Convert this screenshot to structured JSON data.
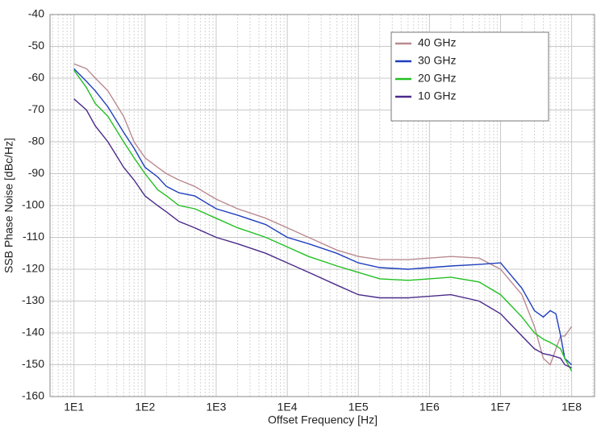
{
  "chart_data": {
    "type": "line",
    "x_label": "Offset Frequency [Hz]",
    "y_label": "SSB Phase Noise [dBc/Hz]",
    "x": [
      10,
      15,
      20,
      30,
      50,
      70,
      100,
      150,
      200,
      300,
      500,
      1000,
      2000,
      5000,
      10000,
      20000,
      50000,
      100000,
      200000,
      500000,
      1000000,
      2000000,
      5000000,
      10000000,
      20000000,
      30000000,
      40000000,
      50000000,
      60000000,
      70000000,
      80000000,
      100000000
    ],
    "series": [
      {
        "name": "40 GHz",
        "color": "#b98a90",
        "values": [
          -55.5,
          -57,
          -60,
          -64,
          -72,
          -80,
          -85,
          -88,
          -90,
          -92,
          -94,
          -98,
          -101,
          -104,
          -107,
          -110,
          -114,
          -116,
          -117,
          -117,
          -116.5,
          -116,
          -116.5,
          -120,
          -128,
          -138,
          -148,
          -150,
          -145,
          -141,
          -141,
          -138
        ]
      },
      {
        "name": "30 GHz",
        "color": "#1f3fbf",
        "values": [
          -57,
          -61,
          -64,
          -69,
          -77,
          -82,
          -88,
          -91,
          -94,
          -96,
          -97,
          -101,
          -103,
          -106,
          -110,
          -112,
          -115,
          -118,
          -119.5,
          -120,
          -119.5,
          -119,
          -118.5,
          -118,
          -126,
          -133,
          -135,
          -133,
          -134,
          -141,
          -148,
          -150
        ]
      },
      {
        "name": "20 GHz",
        "color": "#22c022",
        "values": [
          -57.5,
          -63,
          -68,
          -72,
          -80,
          -85,
          -90,
          -95,
          -97,
          -100,
          -101,
          -104,
          -107,
          -110,
          -113,
          -116,
          -119,
          -121,
          -123,
          -123.5,
          -123,
          -122.5,
          -124,
          -128,
          -135,
          -140,
          -142,
          -143,
          -144,
          -145,
          -148,
          -152
        ]
      },
      {
        "name": "10 GHz",
        "color": "#4b2a8a",
        "values": [
          -66.5,
          -70,
          -75,
          -80,
          -88,
          -92,
          -97,
          -100,
          -102,
          -105,
          -107,
          -110,
          -112,
          -115,
          -118,
          -121,
          -125,
          -128,
          -129,
          -129,
          -128.5,
          -128,
          -130,
          -134,
          -141,
          -145,
          -146.5,
          -147,
          -147.5,
          -148,
          -150,
          -151
        ]
      }
    ],
    "xscale": "log",
    "xlim": [
      4.6,
      210000000
    ],
    "xticks": [
      {
        "value": 10,
        "label": "1E1"
      },
      {
        "value": 100,
        "label": "1E2"
      },
      {
        "value": 1000,
        "label": "1E3"
      },
      {
        "value": 10000,
        "label": "1E4"
      },
      {
        "value": 100000,
        "label": "1E5"
      },
      {
        "value": 1000000,
        "label": "1E6"
      },
      {
        "value": 10000000,
        "label": "1E7"
      },
      {
        "value": 100000000,
        "label": "1E8"
      }
    ],
    "ylim": [
      -160,
      -40
    ],
    "yticks": [
      -160,
      -150,
      -140,
      -130,
      -120,
      -110,
      -100,
      -90,
      -80,
      -70,
      -60,
      -50,
      -40
    ],
    "grid": true,
    "minor_grid": true,
    "legend": "upper right"
  }
}
